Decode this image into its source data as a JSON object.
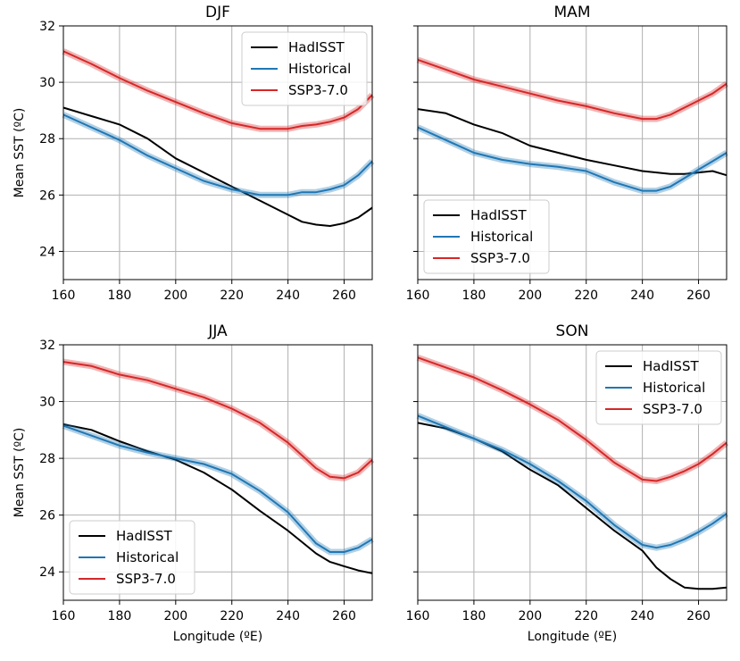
{
  "chart_data": [
    {
      "type": "line",
      "title": "DJF",
      "xlabel": "",
      "ylabel": "Mean SST (ºC)",
      "xlim": [
        160,
        270
      ],
      "ylim": [
        23,
        32
      ],
      "xticks": [
        160,
        180,
        200,
        220,
        240,
        260
      ],
      "yticks": [
        24,
        26,
        28,
        30,
        32
      ],
      "legend_position": "top-right",
      "x": [
        160,
        170,
        180,
        190,
        200,
        210,
        220,
        230,
        240,
        245,
        250,
        255,
        260,
        265,
        270
      ],
      "series": [
        {
          "name": "HadISST",
          "color": "#000000",
          "values": [
            29.1,
            28.8,
            28.5,
            28.0,
            27.3,
            26.8,
            26.3,
            25.8,
            25.3,
            25.05,
            24.95,
            24.9,
            25.0,
            25.2,
            25.55
          ]
        },
        {
          "name": "Historical",
          "color": "#1f77b4",
          "values": [
            28.85,
            28.4,
            27.95,
            27.4,
            26.95,
            26.5,
            26.2,
            26.0,
            26.0,
            26.1,
            26.1,
            26.2,
            26.35,
            26.7,
            27.2
          ]
        },
        {
          "name": "SSP3-7.0",
          "color": "#d62728",
          "values": [
            31.1,
            30.65,
            30.15,
            29.7,
            29.3,
            28.9,
            28.55,
            28.35,
            28.35,
            28.45,
            28.5,
            28.6,
            28.75,
            29.05,
            29.55
          ]
        }
      ]
    },
    {
      "type": "line",
      "title": "MAM",
      "xlabel": "",
      "ylabel": "",
      "xlim": [
        160,
        270
      ],
      "ylim": [
        23,
        32
      ],
      "xticks": [
        160,
        180,
        200,
        220,
        240,
        260
      ],
      "yticks": [
        24,
        26,
        28,
        30,
        32
      ],
      "legend_position": "bottom-left",
      "x": [
        160,
        170,
        180,
        190,
        200,
        210,
        220,
        230,
        240,
        245,
        250,
        255,
        260,
        265,
        270
      ],
      "series": [
        {
          "name": "HadISST",
          "color": "#000000",
          "values": [
            29.05,
            28.9,
            28.5,
            28.2,
            27.75,
            27.5,
            27.25,
            27.05,
            26.85,
            26.8,
            26.75,
            26.75,
            26.8,
            26.85,
            26.7
          ]
        },
        {
          "name": "Historical",
          "color": "#1f77b4",
          "values": [
            28.4,
            27.95,
            27.5,
            27.25,
            27.1,
            27.0,
            26.85,
            26.45,
            26.15,
            26.15,
            26.3,
            26.6,
            26.9,
            27.2,
            27.5
          ]
        },
        {
          "name": "SSP3-7.0",
          "color": "#d62728",
          "values": [
            30.8,
            30.45,
            30.1,
            29.85,
            29.6,
            29.35,
            29.15,
            28.9,
            28.7,
            28.7,
            28.85,
            29.1,
            29.35,
            29.6,
            29.95
          ]
        }
      ]
    },
    {
      "type": "line",
      "title": "JJA",
      "xlabel": "Longitude (ºE)",
      "ylabel": "Mean SST (ºC)",
      "xlim": [
        160,
        270
      ],
      "ylim": [
        23,
        32
      ],
      "xticks": [
        160,
        180,
        200,
        220,
        240,
        260
      ],
      "yticks": [
        24,
        26,
        28,
        30,
        32
      ],
      "legend_position": "bottom-left",
      "x": [
        160,
        170,
        180,
        190,
        200,
        210,
        220,
        230,
        240,
        245,
        250,
        255,
        260,
        265,
        270
      ],
      "series": [
        {
          "name": "HadISST",
          "color": "#000000",
          "values": [
            29.2,
            29.0,
            28.6,
            28.25,
            27.95,
            27.5,
            26.9,
            26.15,
            25.45,
            25.05,
            24.65,
            24.35,
            24.2,
            24.05,
            23.95
          ]
        },
        {
          "name": "Historical",
          "color": "#1f77b4",
          "values": [
            29.15,
            28.8,
            28.45,
            28.2,
            28.0,
            27.8,
            27.45,
            26.85,
            26.1,
            25.55,
            25.0,
            24.7,
            24.7,
            24.85,
            25.15
          ]
        },
        {
          "name": "SSP3-7.0",
          "color": "#d62728",
          "values": [
            31.4,
            31.25,
            30.95,
            30.75,
            30.45,
            30.15,
            29.75,
            29.25,
            28.55,
            28.1,
            27.65,
            27.35,
            27.3,
            27.5,
            27.95
          ]
        }
      ]
    },
    {
      "type": "line",
      "title": "SON",
      "xlabel": "Longitude (ºE)",
      "ylabel": "",
      "xlim": [
        160,
        270
      ],
      "ylim": [
        23,
        32
      ],
      "xticks": [
        160,
        180,
        200,
        220,
        240,
        260
      ],
      "yticks": [
        24,
        26,
        28,
        30,
        32
      ],
      "legend_position": "top-right",
      "x": [
        160,
        170,
        180,
        190,
        200,
        210,
        220,
        230,
        240,
        245,
        250,
        255,
        260,
        265,
        270
      ],
      "series": [
        {
          "name": "HadISST",
          "color": "#000000",
          "values": [
            29.25,
            29.05,
            28.7,
            28.25,
            27.6,
            27.05,
            26.25,
            25.45,
            24.75,
            24.15,
            23.75,
            23.45,
            23.4,
            23.4,
            23.45
          ]
        },
        {
          "name": "Historical",
          "color": "#1f77b4",
          "values": [
            29.5,
            29.1,
            28.7,
            28.3,
            27.8,
            27.2,
            26.5,
            25.65,
            24.95,
            24.85,
            24.95,
            25.15,
            25.4,
            25.7,
            26.05
          ]
        },
        {
          "name": "SSP3-7.0",
          "color": "#d62728",
          "values": [
            31.55,
            31.2,
            30.85,
            30.4,
            29.9,
            29.35,
            28.65,
            27.85,
            27.25,
            27.2,
            27.35,
            27.55,
            27.8,
            28.15,
            28.55
          ]
        }
      ]
    }
  ]
}
